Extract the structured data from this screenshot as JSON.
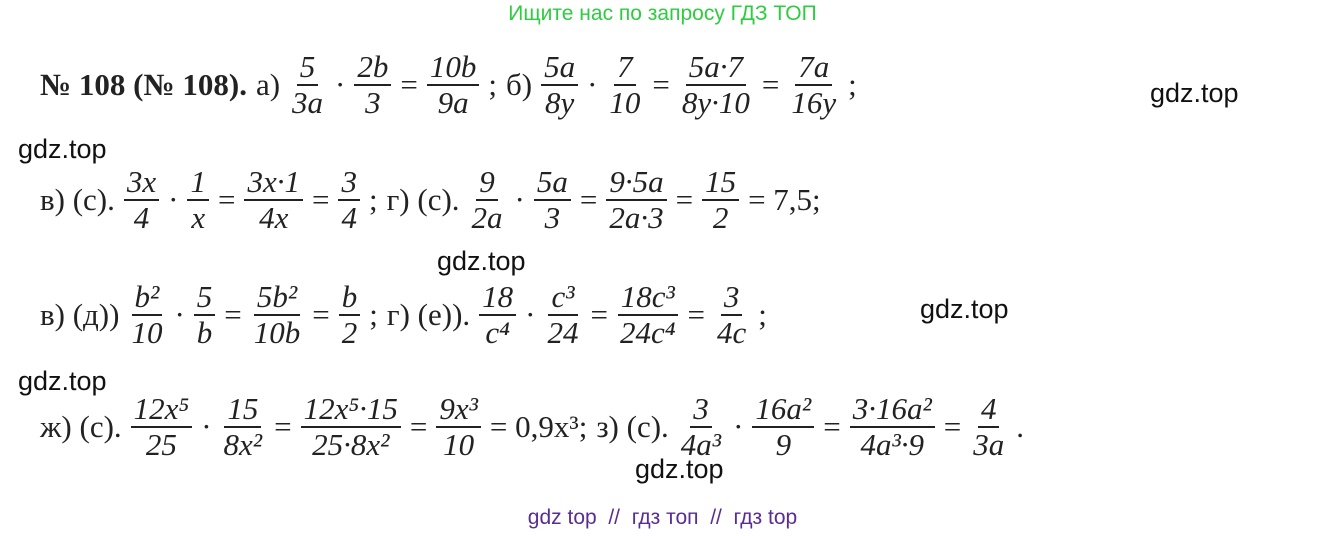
{
  "header": "Ищите нас по запросу ГДЗ ТОП",
  "footer": "gdz top  //  гдз топ  //  гдз top",
  "watermarks": [
    "gdz.top",
    "gdz.top",
    "gdz.top",
    "gdz.top",
    "gdz.top",
    "gdz.top"
  ],
  "lines": [
    [
      "№ 108 (№ 108).",
      "а)",
      {
        "num": "5",
        "den": "3a"
      },
      "·",
      {
        "num": "2b",
        "den": "3"
      },
      "=",
      {
        "num": "10b",
        "den": "9a"
      },
      ";",
      "б)",
      {
        "num": "5a",
        "den": "8y"
      },
      "·",
      {
        "num": "7",
        "den": "10"
      },
      "=",
      {
        "num": "5a·7",
        "den": "8y·10"
      },
      "=",
      {
        "num": "7a",
        "den": "16y"
      },
      ";"
    ],
    [
      "в) (с).",
      {
        "num": "3x",
        "den": "4"
      },
      "·",
      {
        "num": "1",
        "den": "x"
      },
      "=",
      {
        "num": "3x·1",
        "den": "4x"
      },
      "=",
      {
        "num": "3",
        "den": "4"
      },
      ";",
      "г) (с).",
      {
        "num": "9",
        "den": "2a"
      },
      "·",
      {
        "num": "5a",
        "den": "3"
      },
      "=",
      {
        "num": "9·5a",
        "den": "2a·3"
      },
      "=",
      {
        "num": "15",
        "den": "2"
      },
      "= 7,5;"
    ],
    [
      "в) (д))",
      {
        "num": "b²",
        "den": "10"
      },
      "·",
      {
        "num": "5",
        "den": "b"
      },
      "=",
      {
        "num": "5b²",
        "den": "10b"
      },
      "=",
      {
        "num": "b",
        "den": "2"
      },
      ";",
      "г) (е)).",
      {
        "num": "18",
        "den": "c⁴"
      },
      "·",
      {
        "num": "c³",
        "den": "24"
      },
      "=",
      {
        "num": "18c³",
        "den": "24c⁴"
      },
      "=",
      {
        "num": "3",
        "den": "4c"
      },
      ";"
    ],
    [
      "ж) (с).",
      {
        "num": "12x⁵",
        "den": "25"
      },
      "·",
      {
        "num": "15",
        "den": "8x²"
      },
      "=",
      {
        "num": "12x⁵·15",
        "den": "25·8x²"
      },
      "=",
      {
        "num": "9x³",
        "den": "10"
      },
      "= 0,9x³;",
      "з) (с).",
      {
        "num": "3",
        "den": "4a³"
      },
      "·",
      {
        "num": "16a²",
        "den": "9"
      },
      "=",
      {
        "num": "3·16a²",
        "den": "4a³·9"
      },
      "=",
      {
        "num": "4",
        "den": "3a"
      },
      "."
    ]
  ]
}
